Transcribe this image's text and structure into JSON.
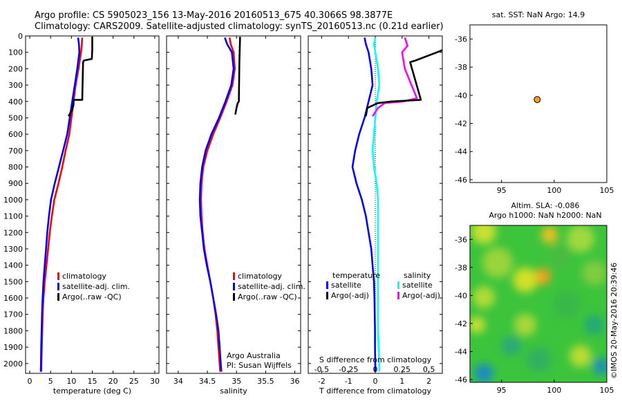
{
  "header": {
    "line1": "Argo profile: CS 5905023_156 13-May-2016 20160513_675 40.3066S 98.3877E",
    "line2": "Climatology: CARS2009. Satellite-adjusted climatology: synTS_20160513.nc (0.21d earlier)"
  },
  "side_text": "©IMOS 20-May-2016 20:39:46",
  "colors": {
    "climatology": "#ff0000",
    "satellite": "#0000ff",
    "argo": "#000000",
    "salinity_satellite": "#00ffff",
    "salinity_argo": "#ff00ff",
    "marker": "#f0a020"
  },
  "chart_data": [
    {
      "type": "line",
      "xlabel": "temperature (deg C)",
      "ylabel": "",
      "xlim": [
        -1,
        31
      ],
      "ylim": [
        2060,
        0
      ],
      "xticks": [
        0,
        5,
        10,
        15,
        20,
        25,
        30
      ],
      "yticks": [
        0,
        100,
        200,
        300,
        400,
        500,
        600,
        700,
        800,
        900,
        1000,
        1100,
        1200,
        1300,
        1400,
        1500,
        1600,
        1700,
        1800,
        1900,
        2000
      ],
      "legend": {
        "placement": "lower-center",
        "entries": [
          "climatology",
          "satellite-adj. clim.",
          "Argo(..raw -QC)"
        ]
      },
      "series": [
        {
          "name": "climatology",
          "color": "#ff0000",
          "x": [
            12.6,
            12.5,
            12.3,
            11.7,
            11.0,
            10.5,
            10.0,
            9.5,
            8.6,
            7.8,
            6.9,
            5.9,
            5.3,
            4.8,
            4.4,
            4.0,
            3.6,
            3.3,
            3.1,
            3.0,
            2.9,
            2.8,
            2.75
          ],
          "y": [
            10,
            50,
            100,
            200,
            300,
            400,
            500,
            600,
            700,
            800,
            900,
            1000,
            1100,
            1200,
            1300,
            1400,
            1500,
            1600,
            1700,
            1800,
            1900,
            2000,
            2050
          ]
        },
        {
          "name": "satellite-adj. clim.",
          "color": "#0000ff",
          "x": [
            11.6,
            11.8,
            11.9,
            11.4,
            10.8,
            10.2,
            9.6,
            9.0,
            8.0,
            7.0,
            6.0,
            5.1,
            4.6,
            4.2,
            3.9,
            3.6,
            3.3,
            3.1,
            2.95,
            2.85,
            2.75,
            2.7,
            2.65
          ],
          "y": [
            10,
            50,
            100,
            200,
            300,
            400,
            500,
            600,
            700,
            800,
            900,
            1000,
            1100,
            1200,
            1300,
            1400,
            1500,
            1600,
            1700,
            1800,
            1900,
            2000,
            2050
          ]
        },
        {
          "name": "Argo(..raw -QC)",
          "color": "#000000",
          "x": [
            15.0,
            15.0,
            14.9,
            13.0,
            12.8,
            12.6,
            10.5,
            10.5,
            10.2,
            9.3
          ],
          "y": [
            5,
            80,
            140,
            150,
            160,
            390,
            390,
            420,
            450,
            490
          ]
        }
      ]
    },
    {
      "type": "line",
      "xlabel": "salinity",
      "ylabel": "",
      "xlim": [
        33.8,
        36.1
      ],
      "ylim": [
        2060,
        0
      ],
      "xticks": [
        34,
        34.5,
        35,
        35.5,
        36
      ],
      "xtick_labels": [
        "34",
        "34.5",
        "35",
        "35.5",
        "36"
      ],
      "legend": {
        "placement": "lower-center",
        "entries": [
          "climatology",
          "satellite-adj. clim.",
          "Argo(..raw -QC)"
        ]
      },
      "annotation": [
        "Argo Australia",
        "PI: Susan Wijffels"
      ],
      "series": [
        {
          "name": "climatology",
          "color": "#ff0000",
          "x": [
            34.88,
            34.9,
            34.95,
            34.97,
            34.93,
            34.83,
            34.72,
            34.6,
            34.5,
            34.43,
            34.4,
            34.39,
            34.4,
            34.42,
            34.45,
            34.5,
            34.55,
            34.6,
            34.64,
            34.67,
            34.69,
            34.71,
            34.72
          ],
          "y": [
            10,
            50,
            100,
            200,
            300,
            400,
            500,
            600,
            700,
            800,
            900,
            1000,
            1100,
            1200,
            1300,
            1400,
            1500,
            1600,
            1700,
            1800,
            1900,
            2000,
            2050
          ]
        },
        {
          "name": "satellite-adj. clim.",
          "color": "#0000ff",
          "x": [
            34.8,
            34.84,
            34.92,
            34.95,
            34.91,
            34.81,
            34.7,
            34.57,
            34.47,
            34.41,
            34.38,
            34.37,
            34.38,
            34.41,
            34.44,
            34.49,
            34.55,
            34.6,
            34.65,
            34.69,
            34.71,
            34.73,
            34.74
          ],
          "y": [
            10,
            50,
            100,
            200,
            300,
            400,
            500,
            600,
            700,
            800,
            900,
            1000,
            1100,
            1200,
            1300,
            1400,
            1500,
            1600,
            1700,
            1800,
            1900,
            2000,
            2050
          ]
        },
        {
          "name": "Argo(..raw -QC)",
          "color": "#000000",
          "x": [
            35.06,
            35.06,
            35.05,
            35.04,
            35.02,
            35.0,
            34.98
          ],
          "y": [
            5,
            20,
            150,
            400,
            410,
            440,
            480
          ]
        }
      ]
    },
    {
      "type": "line",
      "xlabel": "T difference from climatology",
      "top_axis_label": "S difference from climatology",
      "ylabel": "",
      "xlim": [
        -2.5,
        2.5
      ],
      "ylim": [
        2060,
        0
      ],
      "xticks": [
        -2,
        -1,
        0,
        1,
        2
      ],
      "top_ticks": [
        -0.5,
        -0.25,
        0,
        0.25,
        0.5
      ],
      "top_tick_labels": [
        "-0.5",
        "-0.25",
        "0",
        "0.25",
        "0.5"
      ],
      "zero_line": "dotted",
      "legend": {
        "placement": "lower-center",
        "groups": [
          {
            "title": "temperature",
            "entries": [
              "satellite",
              "Argo(-adj)"
            ]
          },
          {
            "title": "salinity",
            "entries": [
              "satellite",
              "Argo(-adj)"
            ]
          }
        ]
      },
      "series": [
        {
          "name": "temperature satellite",
          "color": "#0000ff",
          "x": [
            -0.4,
            -0.35,
            -0.25,
            -0.15,
            -0.1,
            -0.25,
            -0.4,
            -0.6,
            -0.75,
            -0.85,
            -0.7,
            -0.5,
            -0.35,
            -0.25,
            -0.15,
            -0.1,
            -0.05,
            -0.03,
            -0.02,
            -0.01,
            -0.01,
            0.0,
            0.0
          ],
          "y": [
            10,
            50,
            100,
            200,
            300,
            400,
            500,
            600,
            700,
            800,
            900,
            1000,
            1100,
            1200,
            1300,
            1400,
            1500,
            1600,
            1700,
            1800,
            1900,
            2000,
            2050
          ]
        },
        {
          "name": "salinity satellite",
          "color": "#00ffff",
          "x": [
            0.0,
            -0.05,
            0.0,
            0.1,
            0.15,
            0.05,
            0.0,
            -0.05,
            -0.1,
            -0.05,
            0.05,
            0.1,
            0.1,
            0.1,
            0.1,
            0.1,
            0.1,
            0.1,
            0.1,
            0.1,
            0.12,
            0.15,
            0.15
          ],
          "y": [
            10,
            50,
            100,
            200,
            300,
            400,
            500,
            600,
            700,
            800,
            900,
            1000,
            1100,
            1200,
            1300,
            1400,
            1500,
            1600,
            1700,
            1800,
            1900,
            2000,
            2050
          ]
        },
        {
          "name": "salinity Argo(-adj)",
          "color": "#ff00ff",
          "x": [
            1.1,
            1.2,
            1.0,
            1.1,
            1.55,
            1.05,
            0.35,
            0.1,
            -0.1
          ],
          "y": [
            10,
            60,
            100,
            200,
            380,
            400,
            410,
            440,
            490
          ]
        },
        {
          "name": "temperature Argo(-adj)",
          "color": "#000000",
          "x": [
            2.8,
            2.9,
            2.3,
            1.5,
            1.3,
            1.7,
            0.6,
            0.1,
            -0.3,
            -0.35
          ],
          "y": [
            5,
            60,
            100,
            150,
            160,
            390,
            400,
            410,
            440,
            490
          ]
        }
      ]
    },
    {
      "type": "scatter",
      "title": "sat. SST: NaN Argo: 14.9",
      "xlim": [
        92,
        105
      ],
      "ylim": [
        -46.2,
        -35
      ],
      "xticks": [
        95,
        100,
        105
      ],
      "yticks": [
        -36,
        -38,
        -40,
        -42,
        -44,
        -46
      ],
      "points": [
        {
          "x": 98.39,
          "y": -40.31
        }
      ]
    },
    {
      "type": "heatmap",
      "title_lines": [
        "Altim. SLA: -0.086",
        "Argo h1000: NaN h2000: NaN"
      ],
      "xlim": [
        92,
        105
      ],
      "ylim": [
        -46.2,
        -35
      ],
      "xticks": [
        95,
        100,
        105
      ],
      "yticks": [
        -36,
        -38,
        -40,
        -42,
        -44,
        -46
      ]
    }
  ]
}
